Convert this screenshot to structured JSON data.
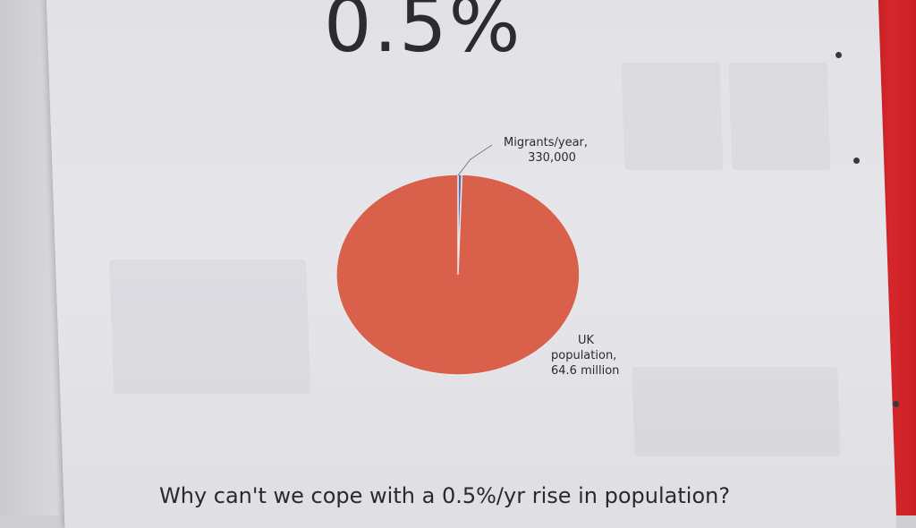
{
  "headline": "0.5%",
  "caption": "Why can't we cope with a 0.5%/yr rise in population?",
  "colors": {
    "uk_population": "#d9604a",
    "migrants": "#5a6fb0"
  },
  "chart_data": {
    "type": "pie",
    "title": "",
    "slices": [
      {
        "label_lines": [
          "Migrants/year,",
          "330,000"
        ],
        "value": 330000,
        "color": "#5a6fb0"
      },
      {
        "label_lines": [
          "UK",
          "population,",
          "64.6 million"
        ],
        "value": 64600000,
        "color": "#d9604a"
      }
    ],
    "legend": "none"
  }
}
